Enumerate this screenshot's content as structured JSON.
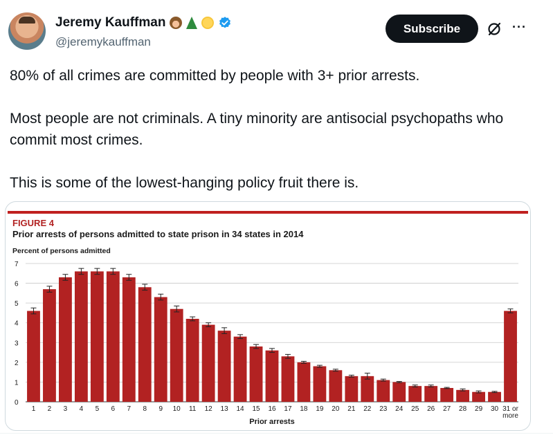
{
  "author": {
    "name": "Jeremy Kauffman",
    "handle": "@jeremykauffman",
    "emojis": [
      "hedgehog-emoji",
      "tree-emoji",
      "sun-emoji"
    ],
    "verified_color": "#1d9bf0"
  },
  "actions": {
    "subscribe_label": "Subscribe"
  },
  "tweet": {
    "paragraphs": [
      "80% of all crimes are committed by people with 3+ prior arrests.",
      "Most people are not criminals. A tiny minority are antisocial psychopaths who commit most crimes.",
      "This is some of the lowest-hanging policy fruit there is."
    ]
  },
  "chart_data": {
    "type": "bar",
    "figure_label": "FIGURE 4",
    "title": "Prior arrests of persons admitted to state prison in 34 states in 2014",
    "ylabel": "Percent of persons admitted",
    "xlabel": "Prior arrests",
    "ylim": [
      0,
      7
    ],
    "yticks": [
      "0",
      "1",
      "2",
      "3",
      "4",
      "5",
      "6",
      "7"
    ],
    "grid": true,
    "bar_color": "#b22222",
    "accent_color": "#c0201f",
    "categories": [
      "1",
      "2",
      "3",
      "4",
      "5",
      "6",
      "7",
      "8",
      "9",
      "10",
      "11",
      "12",
      "13",
      "14",
      "15",
      "16",
      "17",
      "18",
      "19",
      "20",
      "21",
      "22",
      "23",
      "24",
      "25",
      "26",
      "27",
      "28",
      "29",
      "30",
      "31 or more"
    ],
    "values": [
      4.6,
      5.7,
      6.3,
      6.6,
      6.6,
      6.6,
      6.3,
      5.8,
      5.3,
      4.7,
      4.2,
      3.9,
      3.6,
      3.3,
      2.8,
      2.6,
      2.3,
      2.0,
      1.8,
      1.6,
      1.3,
      1.3,
      1.1,
      1.0,
      0.8,
      0.8,
      0.7,
      0.6,
      0.5,
      0.5,
      4.6
    ],
    "error": [
      0.15,
      0.15,
      0.15,
      0.15,
      0.15,
      0.15,
      0.15,
      0.15,
      0.15,
      0.15,
      0.1,
      0.1,
      0.15,
      0.1,
      0.1,
      0.1,
      0.1,
      0.05,
      0.05,
      0.05,
      0.05,
      0.15,
      0.05,
      0.03,
      0.05,
      0.05,
      0.03,
      0.05,
      0.05,
      0.03,
      0.1
    ]
  }
}
